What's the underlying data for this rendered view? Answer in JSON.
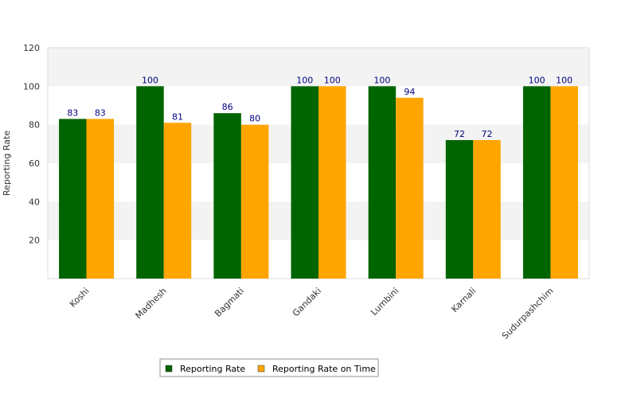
{
  "chart_data": {
    "type": "bar",
    "title": "",
    "xlabel": "",
    "ylabel": "Reporting Rate",
    "ylim": [
      0,
      120
    ],
    "yticks": [
      20,
      40,
      60,
      80,
      100,
      120
    ],
    "categories": [
      "Koshi",
      "Madhesh",
      "Bagmati",
      "Gandaki",
      "Lumbini",
      "Karnali",
      "Sudurpashchim"
    ],
    "series": [
      {
        "name": "Reporting Rate",
        "color": "#006400",
        "values": [
          83,
          100,
          86,
          100,
          100,
          72,
          100
        ]
      },
      {
        "name": "Reporting Rate on Time",
        "color": "#FFA500",
        "values": [
          83,
          81,
          80,
          100,
          94,
          72,
          100
        ]
      }
    ],
    "grid": "alternating horizontal bands",
    "legend_position": "bottom-center"
  }
}
